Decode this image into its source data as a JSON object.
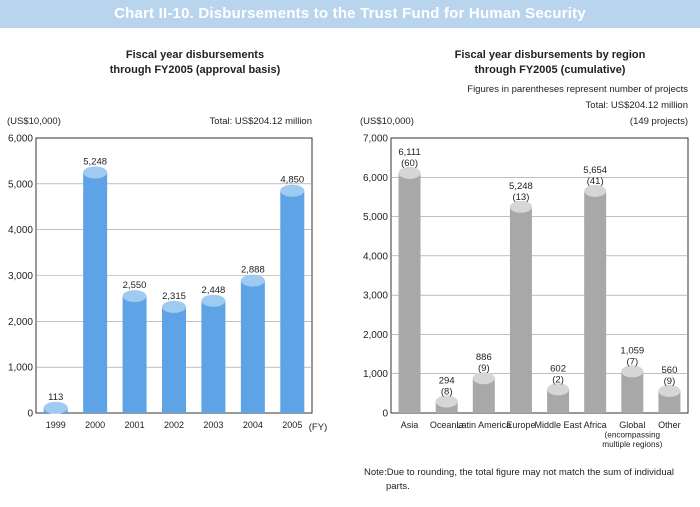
{
  "banner_title": "Chart II-10. Disbursements to the Trust Fund for Human Security",
  "colors": {
    "banner_bg": "#b9d5ee",
    "left_bar": "#5ea3e6",
    "left_bar_top": "#9fcaf2",
    "right_bar": "#a8a8a8",
    "right_bar_top": "#d6d6d6"
  },
  "left": {
    "title_line1": "Fiscal year disbursements",
    "title_line2": "through FY2005 (approval basis)",
    "unit": "(US$10,000)",
    "total": "Total: US$204.12 million",
    "axis_suffix": "(FY)"
  },
  "right": {
    "title_line1": "Fiscal year disbursements by region",
    "title_line2": "through FY2005 (cumulative)",
    "unit": "(US$10,000)",
    "note_parens": "Figures in parentheses represent number of projects",
    "total": "Total: US$204.12 million",
    "projects": "(149 projects)"
  },
  "footnote": {
    "label": "Note:",
    "text": "Due to rounding, the total figure may not match the sum of individual parts."
  },
  "chart_data": [
    {
      "type": "bar",
      "title": "Fiscal year disbursements through FY2005 (approval basis)",
      "ylabel": "(US$10,000)",
      "xlabel": "(FY)",
      "ylim": [
        0,
        6000
      ],
      "yticks": [
        0,
        1000,
        2000,
        3000,
        4000,
        5000,
        6000
      ],
      "ytick_labels": [
        "0",
        "1,000",
        "2,000",
        "3,000",
        "4,000",
        "5,000",
        "6,000"
      ],
      "categories": [
        "1999",
        "2000",
        "2001",
        "2002",
        "2003",
        "2004",
        "2005"
      ],
      "values": [
        113,
        5248,
        2550,
        2315,
        2448,
        2888,
        4850
      ],
      "value_labels": [
        "113",
        "5,248",
        "2,550",
        "2,315",
        "2,448",
        "2,888",
        "4,850"
      ]
    },
    {
      "type": "bar",
      "title": "Fiscal year disbursements by region through FY2005 (cumulative)",
      "ylabel": "(US$10,000)",
      "ylim": [
        0,
        7000
      ],
      "yticks": [
        0,
        1000,
        2000,
        3000,
        4000,
        5000,
        6000,
        7000
      ],
      "ytick_labels": [
        "0",
        "1,000",
        "2,000",
        "3,000",
        "4,000",
        "5,000",
        "6,000",
        "7,000"
      ],
      "categories": [
        "Asia",
        "Oceania",
        "Latin America",
        "Europe",
        "Middle East",
        "Africa",
        "Global (encompassing multiple regions)",
        "Other"
      ],
      "category_lines": [
        [
          "Asia"
        ],
        [
          "Oceania"
        ],
        [
          "Latin America"
        ],
        [
          "Europe"
        ],
        [
          "Middle East"
        ],
        [
          "Africa"
        ],
        [
          "Global",
          "(encompassing",
          "multiple regions)"
        ],
        [
          "Other"
        ]
      ],
      "values": [
        6111,
        294,
        886,
        5248,
        602,
        5654,
        1059,
        560
      ],
      "value_labels": [
        "6,111",
        "294",
        "886",
        "5,248",
        "602",
        "5,654",
        "1,059",
        "560"
      ],
      "projects": [
        60,
        8,
        9,
        13,
        2,
        41,
        7,
        9
      ],
      "project_labels": [
        "(60)",
        "(8)",
        "(9)",
        "(13)",
        "(2)",
        "(41)",
        "(7)",
        "(9)"
      ]
    }
  ]
}
